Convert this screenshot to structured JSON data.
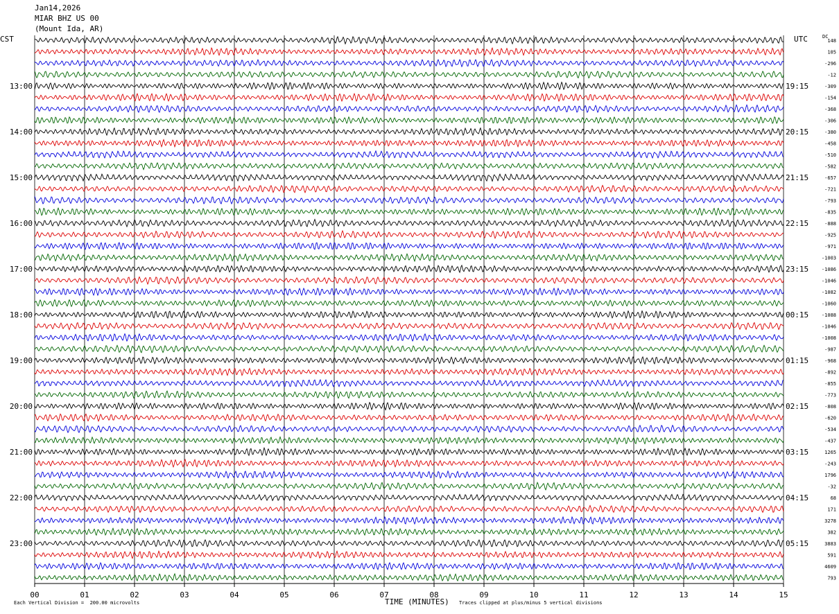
{
  "header": {
    "date": "Jan14,2026",
    "station": "MIAR BHZ US 00",
    "location": "(Mount Ida, AR)"
  },
  "left_zone": "CST",
  "right_zone": "UTC",
  "dc_label": "DC",
  "footer": {
    "scale_note": "Each Vertical Division =  200.00 microvolts",
    "clip_note": "Traces clipped at plus/minus 5 vertical divisions",
    "xlabel": "TIME (MINUTES)"
  },
  "chart_data": {
    "type": "line",
    "x_ticks": [
      "00",
      "01",
      "02",
      "03",
      "04",
      "05",
      "06",
      "07",
      "08",
      "09",
      "10",
      "11",
      "12",
      "13",
      "14",
      "15"
    ],
    "xlim": [
      0,
      15
    ],
    "rows_per_hour": 4,
    "trace_colors": [
      "#000000",
      "#dd0000",
      "#0000dd",
      "#006600"
    ],
    "left_hour_labels": [
      "13:00",
      "14:00",
      "15:00",
      "16:00",
      "17:00",
      "18:00",
      "19:00",
      "20:00",
      "21:00",
      "22:00",
      "23:00"
    ],
    "right_hour_labels": [
      "19:15",
      "20:15",
      "21:15",
      "22:15",
      "23:15",
      "00:15",
      "01:15",
      "02:15",
      "03:15",
      "04:15",
      "05:15"
    ],
    "dc_offsets": [
      "148",
      "105",
      "-296",
      "-12",
      "-309",
      "-154",
      "-368",
      "-306",
      "-380",
      "-458",
      "-510",
      "-582",
      "-657",
      "-721",
      "-793",
      "-835",
      "-888",
      "-925",
      "-971",
      "-1003",
      "-1086",
      "-1046",
      "-1082",
      "-1060",
      "-1088",
      "-1046",
      "-1008",
      "-987",
      "-968",
      "-892",
      "-855",
      "-773",
      "-808",
      "-620",
      "-534",
      "-437",
      "1265",
      "-243",
      "1796",
      "-32",
      "68",
      "171",
      "3278",
      "382",
      "3883",
      "591",
      "4609",
      "793"
    ]
  }
}
